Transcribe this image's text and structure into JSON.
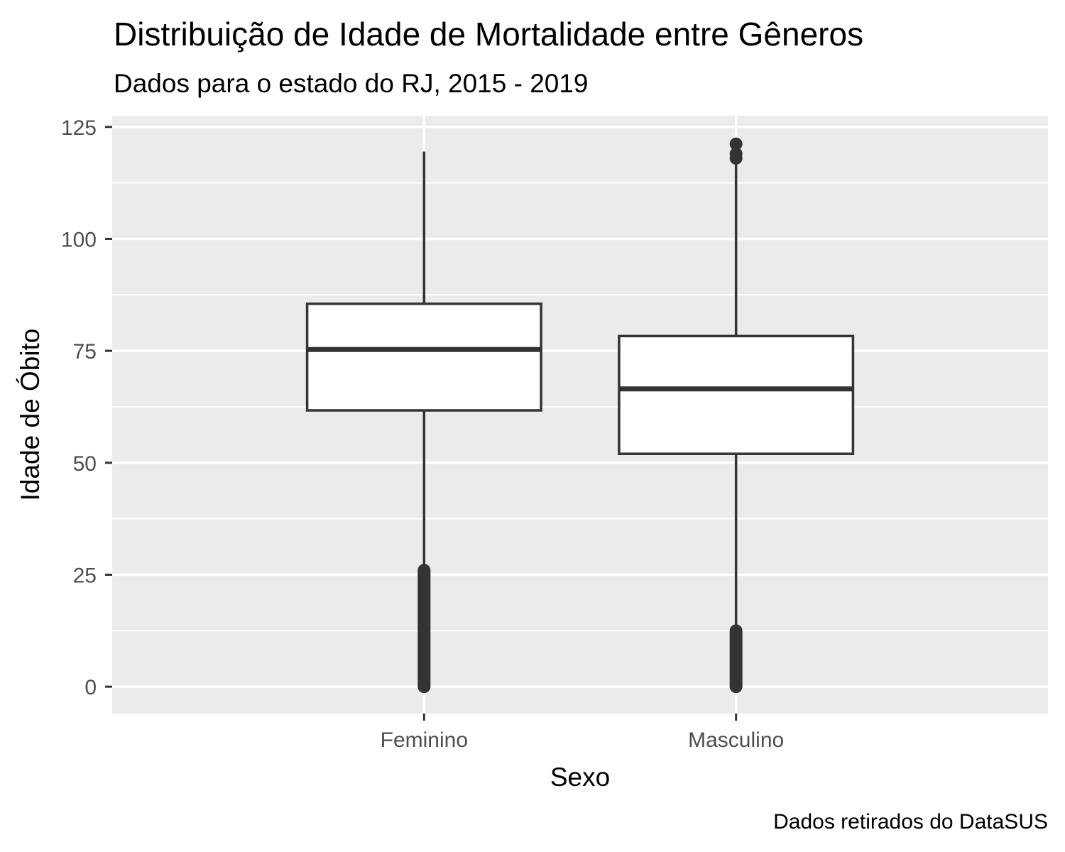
{
  "chart_data": {
    "type": "boxplot",
    "title": "Distribuição de Idade de Mortalidade entre Gêneros",
    "subtitle": "Dados para o estado do RJ, 2015 - 2019",
    "caption": "Dados retirados do DataSUS",
    "xlabel": "Sexo",
    "ylabel": "Idade de Óbito",
    "ylim": [
      -6,
      127.5
    ],
    "yticks": [
      0,
      25,
      50,
      75,
      100,
      125
    ],
    "ytick_labels": [
      "0",
      "25",
      "50",
      "75",
      "100",
      "125"
    ],
    "grid": true,
    "categories": [
      "Feminino",
      "Masculino"
    ],
    "boxes": [
      {
        "category": "Feminino",
        "whisker_low": 26,
        "q1": 61.7,
        "median": 75.3,
        "q3": 85.5,
        "whisker_high": 119.5,
        "outliers_low_range": [
          0,
          26
        ],
        "outliers_high": []
      },
      {
        "category": "Masculino",
        "whisker_low": 12.5,
        "q1": 52,
        "median": 66.5,
        "q3": 78.3,
        "whisker_high": 117.5,
        "outliers_low_range": [
          0,
          12.5
        ],
        "outliers_high": [
          118,
          119,
          121.2
        ]
      }
    ],
    "colors": {
      "panel": "#EBEBEB",
      "grid": "#FFFFFF",
      "box_fill": "#FFFFFF",
      "box_stroke": "#333333",
      "tick_text": "#4D4D4D"
    }
  }
}
